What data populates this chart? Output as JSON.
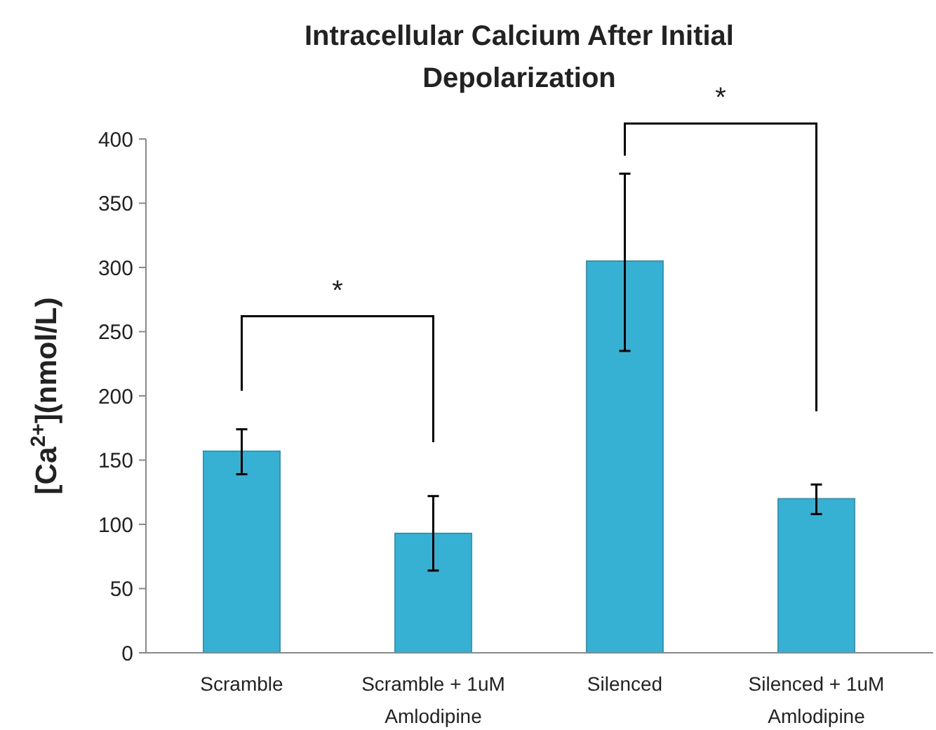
{
  "chart_data": {
    "type": "bar",
    "title": "Intracellular Calcium After Initial Depolarization",
    "ylabel": "[Ca$^{2+}$](nmol/L)",
    "categories": [
      "Scramble",
      "Scramble + 1uM Amlodipine",
      "Silenced",
      "Silenced + 1uM Amlodipine"
    ],
    "values": [
      157,
      93,
      305,
      120
    ],
    "errors": [
      [
        139,
        174
      ],
      [
        64,
        122
      ],
      [
        235,
        373
      ],
      [
        108,
        131
      ]
    ],
    "color": "#36b0d3",
    "ylim": [
      0,
      400
    ],
    "yticks": [
      0,
      50,
      100,
      150,
      200,
      250,
      300,
      350,
      400
    ],
    "grid": false,
    "annotations": [
      "*",
      "*"
    ]
  }
}
